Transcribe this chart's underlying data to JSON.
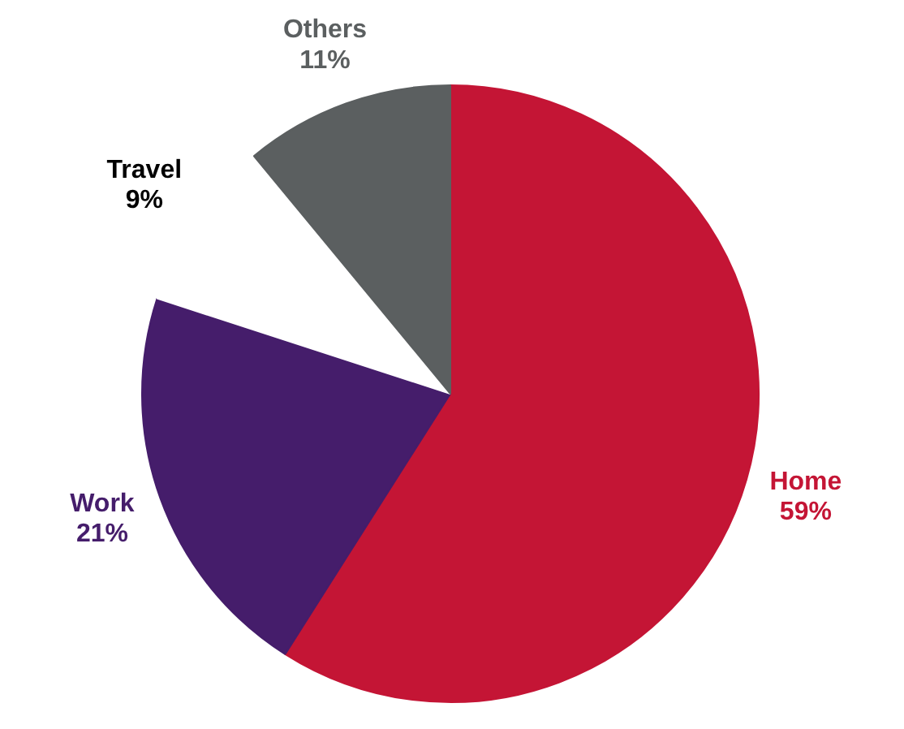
{
  "chart_data": {
    "type": "pie",
    "categories": [
      "Home",
      "Work",
      "Travel",
      "Others"
    ],
    "values": [
      59,
      21,
      9,
      11
    ],
    "value_labels": [
      "59%",
      "21%",
      "9%",
      "11%"
    ],
    "colors": [
      "#c41535",
      "#451d6b",
      "#ffffff",
      "#5b5f60"
    ]
  }
}
